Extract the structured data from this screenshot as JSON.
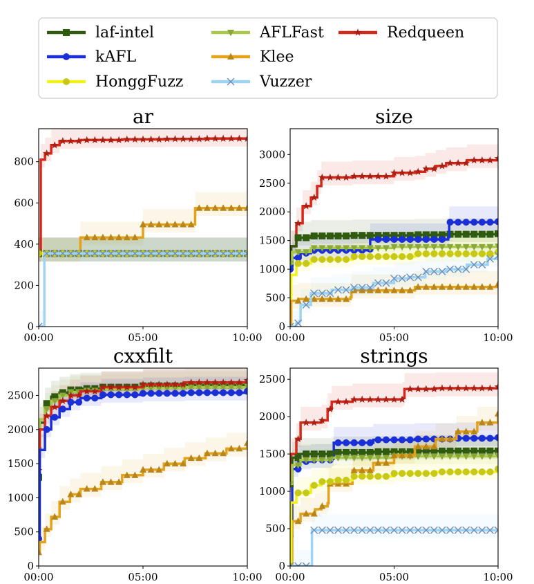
{
  "legend": [
    {
      "name": "laf-intel",
      "color": "#2f5a0f",
      "marker": "square"
    },
    {
      "name": "kAFL",
      "color": "#1a2fd6",
      "marker": "circle"
    },
    {
      "name": "HonggFuzz",
      "color": "#f2f21a",
      "marker": "circle"
    },
    {
      "name": "AFLFast",
      "color": "#a8c94a",
      "marker": "triangle-down"
    },
    {
      "name": "Klee",
      "color": "#e3a21a",
      "marker": "triangle-up"
    },
    {
      "name": "Vuzzer",
      "color": "#9fd3f2",
      "marker": "x"
    },
    {
      "name": "Redqueen",
      "color": "#d6281a",
      "marker": "star"
    }
  ],
  "chart_data": [
    {
      "type": "line",
      "title": "ar",
      "xlim": [
        0,
        10
      ],
      "ylim": [
        0,
        960
      ],
      "xticks": [
        "00:00",
        "05:00",
        "10:00"
      ],
      "yticks": [
        0,
        200,
        400,
        600,
        800
      ],
      "series": [
        {
          "name": "Redqueen",
          "x": [
            0,
            0.1,
            0.3,
            0.6,
            1.0,
            2.0,
            4.0,
            6.0,
            8.0,
            10.0
          ],
          "y": [
            350,
            810,
            840,
            880,
            900,
            905,
            908,
            910,
            912,
            912
          ]
        },
        {
          "name": "Klee",
          "x": [
            0,
            1.99,
            2.0,
            4.99,
            5.0,
            7.49,
            7.5,
            10.0
          ],
          "y": [
            355,
            355,
            432,
            432,
            495,
            495,
            575,
            575
          ]
        },
        {
          "name": "laf-intel",
          "x": [
            0,
            10
          ],
          "y": [
            355,
            355
          ]
        },
        {
          "name": "AFLFast",
          "x": [
            0,
            10
          ],
          "y": [
            355,
            355
          ]
        },
        {
          "name": "kAFL",
          "x": [
            0,
            10
          ],
          "y": [
            355,
            355
          ]
        },
        {
          "name": "HonggFuzz",
          "x": [
            0,
            10
          ],
          "y": [
            355,
            355
          ]
        },
        {
          "name": "Vuzzer",
          "x": [
            0,
            0.25,
            0.27,
            10
          ],
          "y": [
            0,
            0,
            355,
            355
          ]
        }
      ]
    },
    {
      "type": "line",
      "title": "size",
      "xlim": [
        0,
        10
      ],
      "ylim": [
        0,
        3450
      ],
      "xticks": [
        "00:00",
        "05:00",
        "10:00"
      ],
      "yticks": [
        0,
        500,
        1000,
        1500,
        2000,
        2500,
        3000
      ],
      "series": [
        {
          "name": "Redqueen",
          "x": [
            0,
            0.05,
            0.3,
            0.6,
            1.0,
            1.3,
            1.5,
            3.0,
            5.0,
            6.0,
            6.5,
            7.0,
            7.5,
            8.5,
            10.0
          ],
          "y": [
            1100,
            1400,
            1800,
            2100,
            2250,
            2450,
            2600,
            2620,
            2680,
            2700,
            2750,
            2800,
            2850,
            2900,
            2930
          ]
        },
        {
          "name": "laf-intel",
          "x": [
            0,
            0.05,
            0.3,
            1.0,
            3.0,
            6.0,
            7.5,
            10.0
          ],
          "y": [
            1100,
            1400,
            1550,
            1580,
            1590,
            1600,
            1610,
            1620
          ]
        },
        {
          "name": "kAFL",
          "x": [
            0,
            0.1,
            0.5,
            1.0,
            3.8,
            3.85,
            7.6,
            7.65,
            10.0
          ],
          "y": [
            1000,
            1200,
            1280,
            1330,
            1350,
            1520,
            1560,
            1820,
            1830
          ]
        },
        {
          "name": "AFLFast",
          "x": [
            0,
            0.1,
            1.0,
            5.0,
            10.0
          ],
          "y": [
            1100,
            1300,
            1370,
            1390,
            1400
          ]
        },
        {
          "name": "HonggFuzz",
          "x": [
            0,
            0.05,
            0.3,
            1.0,
            3.0,
            6.0,
            10.0
          ],
          "y": [
            0,
            900,
            1100,
            1170,
            1220,
            1270,
            1300
          ]
        },
        {
          "name": "Klee",
          "x": [
            0,
            0.05,
            0.4,
            2.9,
            2.95,
            6.0,
            10.0
          ],
          "y": [
            0,
            450,
            480,
            510,
            630,
            690,
            740
          ]
        },
        {
          "name": "Vuzzer",
          "x": [
            0,
            0.3,
            0.45,
            0.5,
            1.0,
            2.0,
            3.0,
            4.0,
            5.0,
            5.7,
            6.5,
            7.5,
            8.5,
            9.5,
            10.0
          ],
          "y": [
            0,
            60,
            100,
            380,
            580,
            640,
            680,
            760,
            840,
            860,
            960,
            1000,
            1080,
            1180,
            1240
          ]
        }
      ]
    },
    {
      "type": "line",
      "title": "cxxfilt",
      "xlim": [
        0,
        10
      ],
      "ylim": [
        0,
        2900
      ],
      "xticks": [
        "00:00",
        "05:00",
        "10:00"
      ],
      "yticks": [
        0,
        500,
        1000,
        1500,
        2000,
        2500
      ],
      "series": [
        {
          "name": "laf-intel",
          "x": [
            0,
            0.05,
            0.3,
            0.6,
            1.0,
            1.5,
            2.0,
            3.0,
            5.0,
            7.0,
            10.0
          ],
          "y": [
            1300,
            2100,
            2380,
            2480,
            2540,
            2580,
            2600,
            2620,
            2640,
            2650,
            2660
          ]
        },
        {
          "name": "AFLFast",
          "x": [
            0,
            0.05,
            0.3,
            0.6,
            1.0,
            1.5,
            2.0,
            3.0,
            5.0,
            7.0,
            10.0
          ],
          "y": [
            1700,
            2150,
            2300,
            2420,
            2500,
            2550,
            2570,
            2590,
            2610,
            2620,
            2630
          ]
        },
        {
          "name": "Redqueen",
          "x": [
            0,
            0.05,
            0.3,
            0.6,
            1.0,
            1.5,
            2.0,
            3.0,
            5.0,
            7.0,
            10.0
          ],
          "y": [
            1400,
            2000,
            2200,
            2330,
            2420,
            2500,
            2560,
            2620,
            2660,
            2690,
            2720
          ]
        },
        {
          "name": "kAFL",
          "x": [
            0,
            0.05,
            0.3,
            0.6,
            1.0,
            1.5,
            2.0,
            3.0,
            5.0,
            7.0,
            10.0
          ],
          "y": [
            400,
            1700,
            2000,
            2180,
            2300,
            2400,
            2460,
            2510,
            2530,
            2540,
            2560
          ]
        },
        {
          "name": "Klee",
          "x": [
            0,
            0.05,
            0.3,
            0.6,
            1.0,
            1.5,
            2.0,
            3.0,
            4.0,
            5.0,
            6.0,
            7.0,
            8.0,
            9.0,
            10.0
          ],
          "y": [
            200,
            350,
            540,
            720,
            940,
            1050,
            1130,
            1230,
            1330,
            1410,
            1500,
            1580,
            1650,
            1720,
            1800
          ]
        }
      ]
    },
    {
      "type": "line",
      "title": "strings",
      "xlim": [
        0,
        10
      ],
      "ylim": [
        0,
        2650
      ],
      "xticks": [
        "00:00",
        "05:00",
        "10:00"
      ],
      "yticks": [
        0,
        500,
        1000,
        1500,
        2000,
        2500
      ],
      "series": [
        {
          "name": "Redqueen",
          "x": [
            0,
            0.05,
            0.3,
            0.5,
            1.5,
            1.8,
            2.0,
            3.0,
            5.4,
            5.5,
            7.0,
            10.0
          ],
          "y": [
            1100,
            1500,
            1700,
            1920,
            1950,
            2100,
            2200,
            2230,
            2250,
            2370,
            2380,
            2400
          ]
        },
        {
          "name": "kAFL",
          "x": [
            0,
            0.1,
            0.4,
            1.0,
            2.0,
            2.1,
            4.0,
            6.0,
            8.0,
            10.0
          ],
          "y": [
            400,
            1300,
            1400,
            1420,
            1440,
            1650,
            1690,
            1700,
            1710,
            1720
          ]
        },
        {
          "name": "laf-intel",
          "x": [
            0,
            0.1,
            0.4,
            2.0,
            4.0,
            6.0,
            10.0
          ],
          "y": [
            1100,
            1450,
            1500,
            1520,
            1530,
            1540,
            1540
          ]
        },
        {
          "name": "AFLFast",
          "x": [
            0,
            0.1,
            0.5,
            2.0,
            5.0,
            10.0
          ],
          "y": [
            1100,
            1350,
            1420,
            1450,
            1470,
            1480
          ]
        },
        {
          "name": "Klee",
          "x": [
            0,
            0.1,
            0.5,
            1.2,
            1.5,
            1.8,
            1.85,
            3.0,
            4.0,
            5.0,
            6.0,
            7.0,
            8.0,
            9.0,
            10.0
          ],
          "y": [
            0,
            600,
            700,
            760,
            800,
            840,
            1100,
            1280,
            1380,
            1480,
            1600,
            1700,
            1800,
            1920,
            2040
          ]
        },
        {
          "name": "HonggFuzz",
          "x": [
            0,
            0.05,
            0.3,
            1.0,
            1.5,
            2.0,
            3.0,
            5.0,
            7.0,
            10.0
          ],
          "y": [
            0,
            850,
            980,
            1080,
            1130,
            1150,
            1200,
            1240,
            1260,
            1300
          ]
        },
        {
          "name": "Vuzzer",
          "x": [
            0,
            1.0,
            1.05,
            10.0
          ],
          "y": [
            0,
            0,
            480,
            480
          ]
        }
      ]
    }
  ]
}
